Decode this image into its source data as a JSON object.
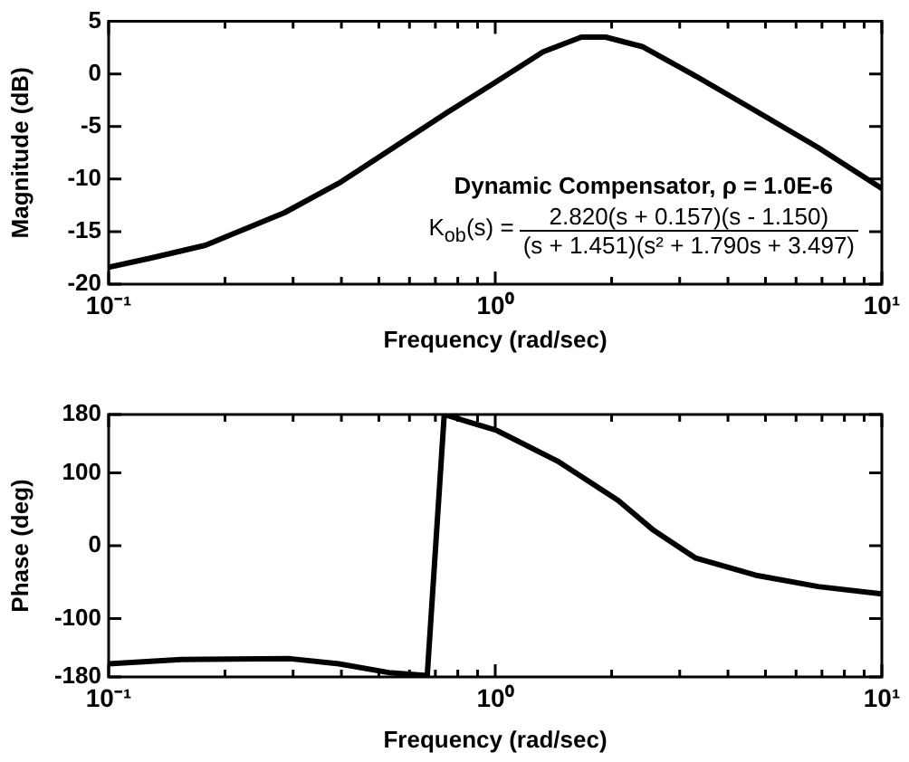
{
  "chart_data": [
    {
      "type": "line",
      "xlabel": "Frequency (rad/sec)",
      "ylabel": "Magnitude (dB)",
      "log": "x",
      "xlim": [
        0.1,
        10
      ],
      "ylim": [
        -20,
        5
      ],
      "xticks": [
        {
          "value": 0.1,
          "label": "10⁻¹"
        },
        {
          "value": 0.2,
          "label": null
        },
        {
          "value": 0.3,
          "label": null
        },
        {
          "value": 0.4,
          "label": null
        },
        {
          "value": 0.5,
          "label": null
        },
        {
          "value": 0.6,
          "label": null
        },
        {
          "value": 0.7,
          "label": null
        },
        {
          "value": 0.8,
          "label": null
        },
        {
          "value": 0.9,
          "label": null
        },
        {
          "value": 1,
          "label": "10⁰"
        },
        {
          "value": 2,
          "label": null
        },
        {
          "value": 3,
          "label": null
        },
        {
          "value": 4,
          "label": null
        },
        {
          "value": 5,
          "label": null
        },
        {
          "value": 6,
          "label": null
        },
        {
          "value": 7,
          "label": null
        },
        {
          "value": 8,
          "label": null
        },
        {
          "value": 9,
          "label": null
        },
        {
          "value": 10,
          "label": "10¹"
        }
      ],
      "yticks": [
        -20,
        -15,
        -10,
        -5,
        0,
        5
      ],
      "annotations": [
        "Dynamic Compensator, ρ = 1.0E-6",
        "K$_{ob}$(s) =",
        "2.820(s + 0.157)(s - 1.150)",
        "(s + 1.451)(s² + 1.790s + 3.497)"
      ],
      "series": [
        {
          "color": "#000000",
          "x": [
            0.1,
            0.129,
            0.178,
            0.285,
            0.394,
            0.546,
            0.756,
            1.0,
            1.33,
            1.67,
            1.93,
            2.4,
            3.3,
            4.76,
            6.84,
            10
          ],
          "values": [
            -18.4,
            -17.5,
            -16.3,
            -13.2,
            -10.4,
            -7.0,
            -3.6,
            -0.8,
            2.1,
            3.5,
            3.5,
            2.6,
            -0.2,
            -3.6,
            -7.0,
            -10.9
          ]
        }
      ]
    },
    {
      "type": "line",
      "xlabel": "Frequency (rad/sec)",
      "ylabel": "Phase (deg)",
      "log": "x",
      "xlim": [
        0.1,
        10
      ],
      "ylim": [
        -180,
        180
      ],
      "xticks": [
        {
          "value": 0.1,
          "label": "10⁻¹"
        },
        {
          "value": 0.2,
          "label": null
        },
        {
          "value": 0.3,
          "label": null
        },
        {
          "value": 0.4,
          "label": null
        },
        {
          "value": 0.5,
          "label": null
        },
        {
          "value": 0.6,
          "label": null
        },
        {
          "value": 0.7,
          "label": null
        },
        {
          "value": 0.8,
          "label": null
        },
        {
          "value": 0.9,
          "label": null
        },
        {
          "value": 1,
          "label": "10⁰"
        },
        {
          "value": 2,
          "label": null
        },
        {
          "value": 3,
          "label": null
        },
        {
          "value": 4,
          "label": null
        },
        {
          "value": 5,
          "label": null
        },
        {
          "value": 6,
          "label": null
        },
        {
          "value": 7,
          "label": null
        },
        {
          "value": 8,
          "label": null
        },
        {
          "value": 9,
          "label": null
        },
        {
          "value": 10,
          "label": "10¹"
        }
      ],
      "yticks": [
        -180,
        -100,
        0,
        100,
        180
      ],
      "series": [
        {
          "color": "#000000",
          "x": [
            0.1,
            0.154,
            0.295,
            0.394,
            0.53,
            0.667,
            0.738,
            1.01,
            1.45,
            2.08,
            2.57,
            3.3,
            4.77,
            6.84,
            10
          ],
          "values": [
            -162,
            -156,
            -155,
            -162,
            -174,
            -178,
            180,
            158,
            116,
            62,
            21,
            -17,
            -41,
            -56,
            -66
          ]
        }
      ]
    }
  ]
}
